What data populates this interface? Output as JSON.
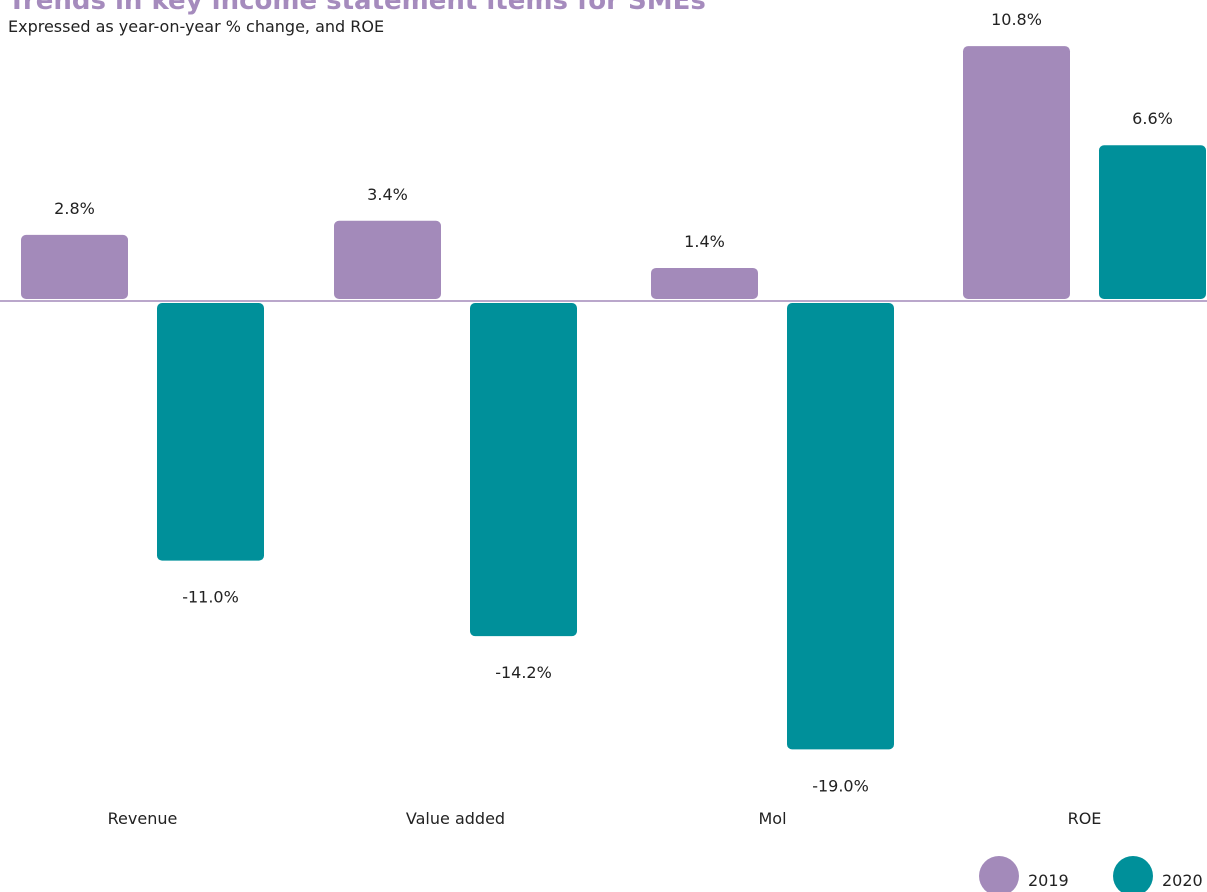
{
  "title": "Trends in key income statement items for SMEs",
  "subtitle": "Expressed as year-on-year % change, and ROE",
  "colors": {
    "title": "#a58bbd",
    "series_2019": "#a38aba",
    "series_2020": "#00909a",
    "baseline": "#a38aba",
    "text": "#222222"
  },
  "legend": [
    {
      "label": "2019",
      "color": "#a38aba"
    },
    {
      "label": "2020",
      "color": "#00909a"
    }
  ],
  "chart_data": {
    "type": "bar",
    "title": "Trends in key income statement items for SMEs",
    "subtitle": "Expressed as year-on-year % change, and ROE",
    "categories": [
      "Revenue",
      "Value added",
      "Mol",
      "ROE"
    ],
    "series": [
      {
        "name": "2019",
        "values": [
          2.8,
          3.4,
          1.4,
          10.8
        ],
        "labels": [
          "2.8%",
          "3.4%",
          "1.4%",
          "10.8%"
        ]
      },
      {
        "name": "2020",
        "values": [
          -11.0,
          -14.2,
          -19.0,
          6.6
        ],
        "labels": [
          "-11.0%",
          "-14.2%",
          "-19.0%",
          "6.6%"
        ]
      }
    ],
    "ylim": [
      -19.0,
      10.8
    ],
    "grid": false,
    "legend_position": "bottom-right",
    "xlabel": "",
    "ylabel": ""
  }
}
